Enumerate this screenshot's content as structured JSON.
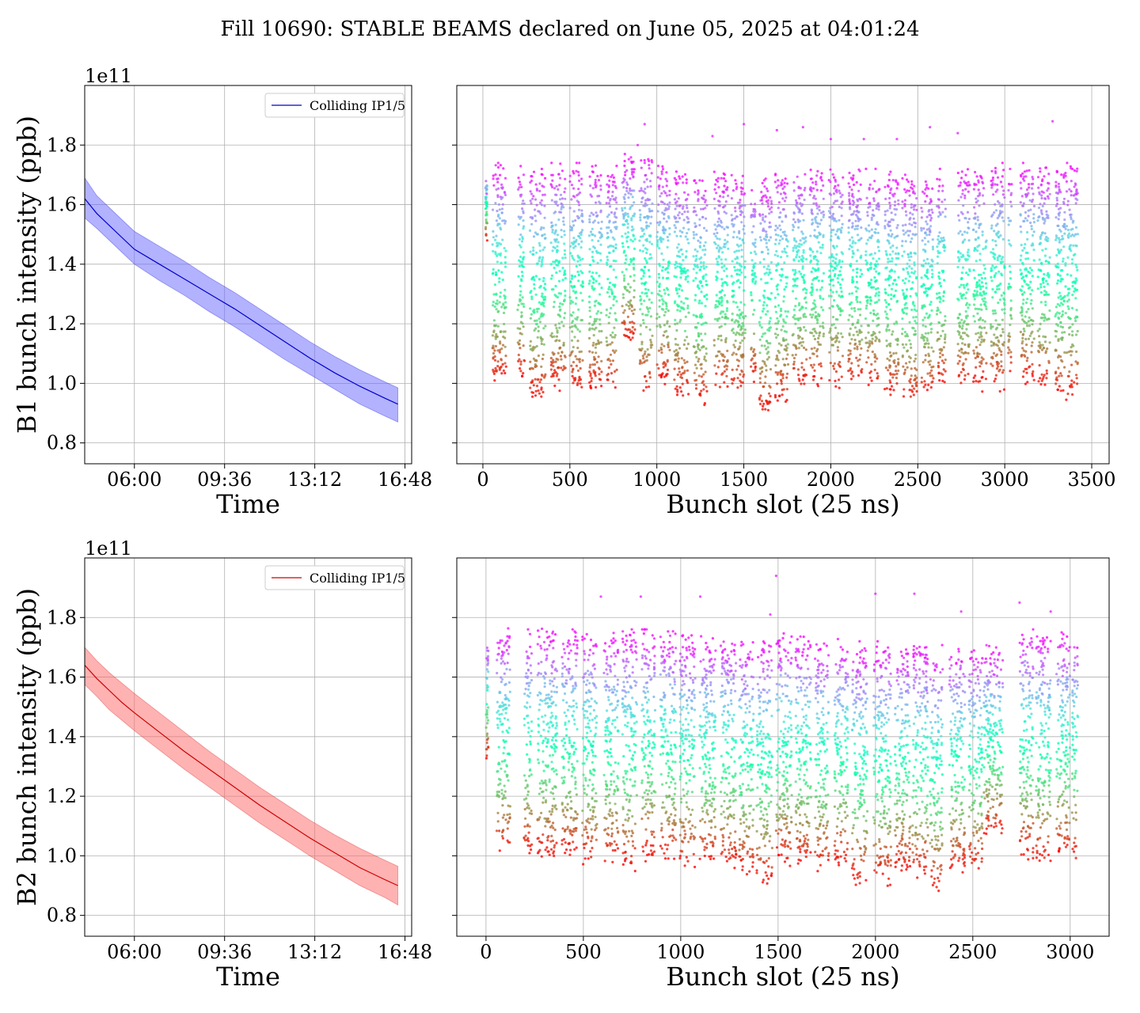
{
  "figure": {
    "title": "Fill 10690: STABLE BEAMS declared on June 05, 2025 at 04:01:24"
  },
  "chart_data": [
    {
      "id": "b1-time",
      "type": "line",
      "xlabel": "Time",
      "ylabel": "B1 bunch intensity (ppb)",
      "offset_label": "1e11",
      "xlim": [
        "04:01",
        "17:04"
      ],
      "ylim": [
        0.73,
        2.0
      ],
      "x_ticks": [
        "06:00",
        "09:36",
        "13:12",
        "16:48"
      ],
      "y_ticks": [
        "0.8",
        "1.0",
        "1.2",
        "1.4",
        "1.6",
        "1.8"
      ],
      "grid": true,
      "legend": {
        "position": "top-right",
        "entries": [
          "Colliding IP1/5"
        ]
      },
      "series": [
        {
          "name": "Colliding IP1/5",
          "color": "#0000cc",
          "band_color": "#6666ff",
          "x": [
            "04:01",
            "04:30",
            "05:00",
            "05:30",
            "06:00",
            "07:00",
            "08:00",
            "09:00",
            "10:00",
            "11:00",
            "12:00",
            "13:00",
            "14:00",
            "15:00",
            "16:00",
            "16:31"
          ],
          "values": [
            1.62,
            1.57,
            1.53,
            1.49,
            1.45,
            1.4,
            1.35,
            1.3,
            1.25,
            1.195,
            1.14,
            1.085,
            1.035,
            0.99,
            0.95,
            0.93
          ],
          "band_lower": [
            1.555,
            1.52,
            1.48,
            1.44,
            1.4,
            1.345,
            1.295,
            1.24,
            1.19,
            1.135,
            1.08,
            1.03,
            0.98,
            0.93,
            0.89,
            0.87
          ],
          "band_upper": [
            1.69,
            1.63,
            1.59,
            1.55,
            1.51,
            1.46,
            1.41,
            1.355,
            1.305,
            1.25,
            1.195,
            1.14,
            1.09,
            1.045,
            1.005,
            0.985
          ]
        }
      ]
    },
    {
      "id": "b1-slot",
      "type": "scatter",
      "xlabel": "Bunch slot (25 ns)",
      "ylabel": "",
      "xlim": [
        -150,
        3600
      ],
      "ylim": [
        0.73,
        2.0
      ],
      "x_ticks": [
        "0",
        "500",
        "1000",
        "1500",
        "2000",
        "2500",
        "3000",
        "3500"
      ],
      "colormap": "rainbow (color encodes time: purple = start of fill, red = end of fill)",
      "grid": true,
      "trains": [
        {
          "start": 15,
          "end": 25,
          "top": 1.7,
          "bottom": 1.46
        },
        {
          "start": 55,
          "end": 135,
          "top": 1.72,
          "bottom": 0.92
        },
        {
          "start": 200,
          "end": 240,
          "top": 1.72,
          "bottom": 0.93
        },
        {
          "start": 270,
          "end": 360,
          "top": 1.7,
          "bottom": 0.86
        },
        {
          "start": 390,
          "end": 475,
          "top": 1.72,
          "bottom": 0.9
        },
        {
          "start": 500,
          "end": 575,
          "top": 1.72,
          "bottom": 0.88
        },
        {
          "start": 610,
          "end": 685,
          "top": 1.72,
          "bottom": 0.89
        },
        {
          "start": 710,
          "end": 770,
          "top": 1.71,
          "bottom": 0.89
        },
        {
          "start": 800,
          "end": 875,
          "top": 1.75,
          "bottom": 1.06
        },
        {
          "start": 900,
          "end": 975,
          "top": 1.76,
          "bottom": 0.87
        },
        {
          "start": 1000,
          "end": 1075,
          "top": 1.71,
          "bottom": 0.92
        },
        {
          "start": 1100,
          "end": 1185,
          "top": 1.7,
          "bottom": 0.87
        },
        {
          "start": 1210,
          "end": 1290,
          "top": 1.69,
          "bottom": 0.83
        },
        {
          "start": 1330,
          "end": 1410,
          "top": 1.69,
          "bottom": 0.89
        },
        {
          "start": 1430,
          "end": 1510,
          "top": 1.69,
          "bottom": 0.88
        },
        {
          "start": 1540,
          "end": 1570,
          "top": 1.66,
          "bottom": 0.93
        },
        {
          "start": 1590,
          "end": 1660,
          "top": 1.67,
          "bottom": 0.81
        },
        {
          "start": 1680,
          "end": 1755,
          "top": 1.7,
          "bottom": 0.85
        },
        {
          "start": 1780,
          "end": 1860,
          "top": 1.71,
          "bottom": 0.9
        },
        {
          "start": 1880,
          "end": 1960,
          "top": 1.71,
          "bottom": 0.9
        },
        {
          "start": 1990,
          "end": 2070,
          "top": 1.71,
          "bottom": 0.9
        },
        {
          "start": 2100,
          "end": 2180,
          "top": 1.7,
          "bottom": 0.91
        },
        {
          "start": 2200,
          "end": 2280,
          "top": 1.7,
          "bottom": 0.9
        },
        {
          "start": 2310,
          "end": 2390,
          "top": 1.69,
          "bottom": 0.87
        },
        {
          "start": 2410,
          "end": 2495,
          "top": 1.68,
          "bottom": 0.84
        },
        {
          "start": 2520,
          "end": 2590,
          "top": 1.67,
          "bottom": 0.87
        },
        {
          "start": 2610,
          "end": 2660,
          "top": 1.7,
          "bottom": 0.9
        },
        {
          "start": 2730,
          "end": 2800,
          "top": 1.7,
          "bottom": 0.9
        },
        {
          "start": 2820,
          "end": 2895,
          "top": 1.71,
          "bottom": 0.9
        },
        {
          "start": 2920,
          "end": 3000,
          "top": 1.72,
          "bottom": 0.89
        },
        {
          "start": 3020,
          "end": 3040,
          "top": 1.71,
          "bottom": 0.93
        },
        {
          "start": 3090,
          "end": 3170,
          "top": 1.72,
          "bottom": 0.91
        },
        {
          "start": 3190,
          "end": 3260,
          "top": 1.71,
          "bottom": 0.9
        },
        {
          "start": 3290,
          "end": 3420,
          "top": 1.72,
          "bottom": 0.86
        }
      ],
      "outliers": [
        [
          890,
          1.8
        ],
        [
          930,
          1.87
        ],
        [
          1500,
          1.87
        ],
        [
          1690,
          1.85
        ],
        [
          1840,
          1.86
        ],
        [
          2000,
          1.82
        ],
        [
          2570,
          1.86
        ],
        [
          2730,
          1.84
        ],
        [
          3275,
          1.88
        ],
        [
          1320,
          1.83
        ],
        [
          2190,
          1.82
        ],
        [
          2380,
          1.82
        ]
      ]
    },
    {
      "id": "b2-time",
      "type": "line",
      "xlabel": "Time",
      "ylabel": "B2 bunch intensity (ppb)",
      "offset_label": "1e11",
      "xlim": [
        "04:01",
        "17:04"
      ],
      "ylim": [
        0.73,
        2.0
      ],
      "x_ticks": [
        "06:00",
        "09:36",
        "13:12",
        "16:48"
      ],
      "y_ticks": [
        "0.8",
        "1.0",
        "1.2",
        "1.4",
        "1.6",
        "1.8"
      ],
      "grid": true,
      "legend": {
        "position": "top-right",
        "entries": [
          "Colliding IP1/5"
        ]
      },
      "series": [
        {
          "name": "Colliding IP1/5",
          "color": "#cc0000",
          "band_color": "#ff6666",
          "x": [
            "04:01",
            "04:30",
            "05:00",
            "05:30",
            "06:00",
            "07:00",
            "08:00",
            "09:00",
            "10:00",
            "11:00",
            "12:00",
            "13:00",
            "14:00",
            "15:00",
            "16:00",
            "16:31"
          ],
          "values": [
            1.64,
            1.595,
            1.555,
            1.515,
            1.48,
            1.415,
            1.35,
            1.29,
            1.23,
            1.17,
            1.115,
            1.06,
            1.01,
            0.96,
            0.92,
            0.9
          ],
          "band_lower": [
            1.575,
            1.535,
            1.49,
            1.455,
            1.42,
            1.355,
            1.29,
            1.23,
            1.17,
            1.11,
            1.055,
            1.0,
            0.95,
            0.9,
            0.86,
            0.835
          ],
          "band_upper": [
            1.7,
            1.655,
            1.615,
            1.58,
            1.545,
            1.48,
            1.415,
            1.35,
            1.29,
            1.23,
            1.175,
            1.12,
            1.07,
            1.025,
            0.985,
            0.965
          ]
        }
      ]
    },
    {
      "id": "b2-slot",
      "type": "scatter",
      "xlabel": "Bunch slot (25 ns)",
      "ylabel": "",
      "xlim": [
        -150,
        3200
      ],
      "ylim": [
        0.73,
        2.0
      ],
      "x_ticks": [
        "0",
        "500",
        "1000",
        "1500",
        "2000",
        "2500",
        "3000"
      ],
      "colormap": "rainbow (color encodes time: purple = start of fill, red = end of fill)",
      "grid": true,
      "trains": [
        {
          "start": 0,
          "end": 12,
          "top": 1.72,
          "bottom": 1.29
        },
        {
          "start": 55,
          "end": 125,
          "top": 1.75,
          "bottom": 0.92
        },
        {
          "start": 195,
          "end": 235,
          "top": 1.74,
          "bottom": 0.92
        },
        {
          "start": 265,
          "end": 365,
          "top": 1.75,
          "bottom": 0.9
        },
        {
          "start": 390,
          "end": 470,
          "top": 1.74,
          "bottom": 0.91
        },
        {
          "start": 495,
          "end": 570,
          "top": 1.74,
          "bottom": 0.88
        },
        {
          "start": 605,
          "end": 680,
          "top": 1.73,
          "bottom": 0.89
        },
        {
          "start": 700,
          "end": 775,
          "top": 1.74,
          "bottom": 0.86
        },
        {
          "start": 800,
          "end": 870,
          "top": 1.74,
          "bottom": 0.9
        },
        {
          "start": 895,
          "end": 975,
          "top": 1.74,
          "bottom": 0.89
        },
        {
          "start": 995,
          "end": 1075,
          "top": 1.72,
          "bottom": 0.87
        },
        {
          "start": 1095,
          "end": 1180,
          "top": 1.72,
          "bottom": 0.88
        },
        {
          "start": 1205,
          "end": 1285,
          "top": 1.72,
          "bottom": 0.88
        },
        {
          "start": 1300,
          "end": 1375,
          "top": 1.71,
          "bottom": 0.85
        },
        {
          "start": 1390,
          "end": 1470,
          "top": 1.72,
          "bottom": 0.81
        },
        {
          "start": 1490,
          "end": 1570,
          "top": 1.73,
          "bottom": 0.88
        },
        {
          "start": 1590,
          "end": 1670,
          "top": 1.72,
          "bottom": 0.88
        },
        {
          "start": 1690,
          "end": 1760,
          "top": 1.71,
          "bottom": 0.86
        },
        {
          "start": 1790,
          "end": 1860,
          "top": 1.71,
          "bottom": 0.88
        },
        {
          "start": 1880,
          "end": 1960,
          "top": 1.7,
          "bottom": 0.8
        },
        {
          "start": 1990,
          "end": 2080,
          "top": 1.7,
          "bottom": 0.81
        },
        {
          "start": 2100,
          "end": 2180,
          "top": 1.69,
          "bottom": 0.86
        },
        {
          "start": 2190,
          "end": 2270,
          "top": 1.7,
          "bottom": 0.83
        },
        {
          "start": 2280,
          "end": 2345,
          "top": 1.69,
          "bottom": 0.78
        },
        {
          "start": 2380,
          "end": 2460,
          "top": 1.69,
          "bottom": 0.86
        },
        {
          "start": 2480,
          "end": 2550,
          "top": 1.69,
          "bottom": 0.86
        },
        {
          "start": 2555,
          "end": 2655,
          "top": 1.69,
          "bottom": 0.99
        },
        {
          "start": 2740,
          "end": 2810,
          "top": 1.74,
          "bottom": 0.9
        },
        {
          "start": 2825,
          "end": 2900,
          "top": 1.73,
          "bottom": 0.89
        },
        {
          "start": 2930,
          "end": 3000,
          "top": 1.73,
          "bottom": 0.91
        },
        {
          "start": 3010,
          "end": 3040,
          "top": 1.74,
          "bottom": 0.9
        }
      ],
      "outliers": [
        [
          1490,
          1.94
        ],
        [
          1460,
          1.81
        ],
        [
          590,
          1.87
        ],
        [
          795,
          1.87
        ],
        [
          1100,
          1.87
        ],
        [
          2000,
          1.88
        ],
        [
          2200,
          1.88
        ],
        [
          2740,
          1.85
        ],
        [
          2440,
          1.82
        ],
        [
          2900,
          1.82
        ]
      ]
    }
  ]
}
